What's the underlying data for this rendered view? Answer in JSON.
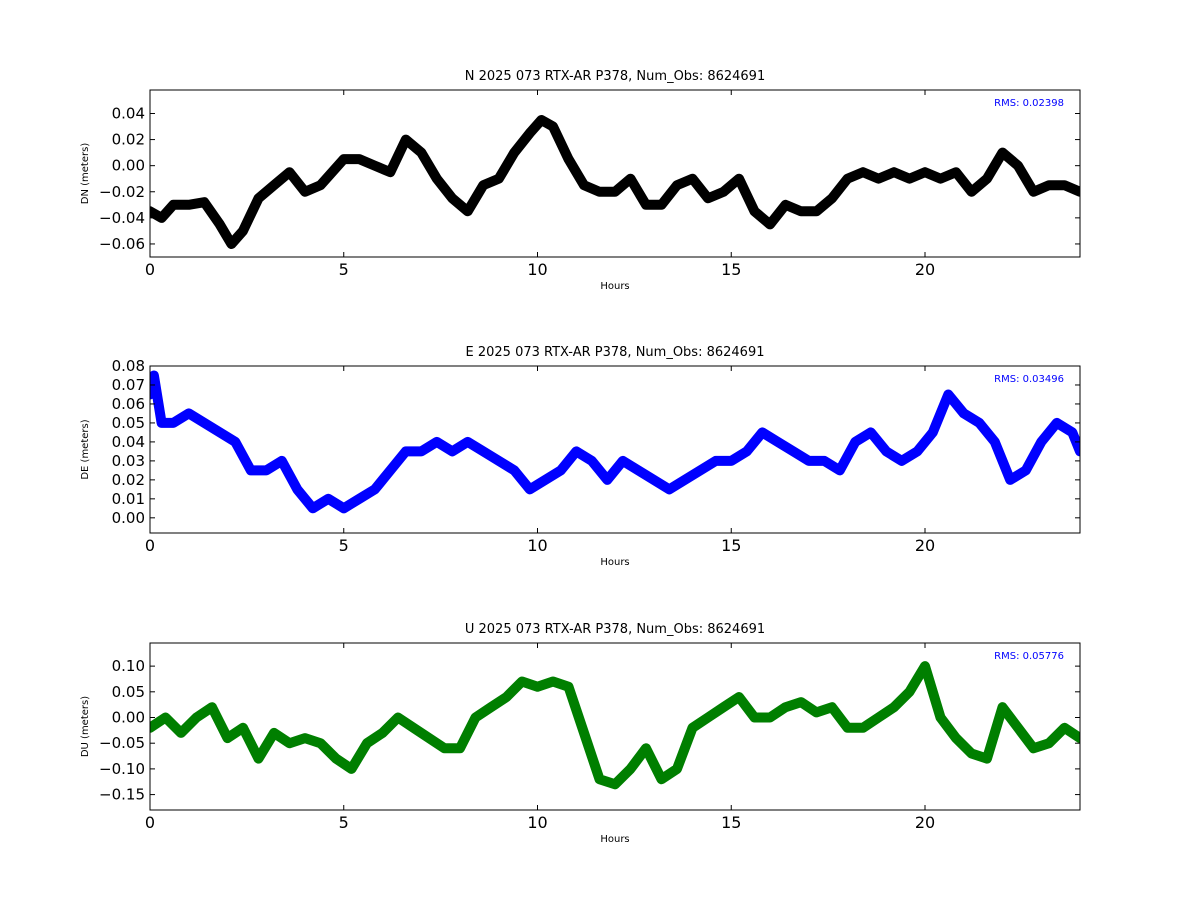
{
  "colors": {
    "n": "#000000",
    "e": "#0000ff",
    "u": "#007f00",
    "rms": "#0000ff"
  },
  "chart_data": [
    {
      "type": "line",
      "title": "N 2025 073 RTX-AR  P378, Num_Obs: 8624691",
      "xlabel": "Hours",
      "ylabel": "DN (meters)",
      "xlim": [
        0,
        24
      ],
      "ylim": [
        -0.07,
        0.058
      ],
      "x_ticks": [
        0,
        5,
        10,
        15,
        20
      ],
      "y_ticks": [
        -0.06,
        -0.04,
        -0.02,
        0.0,
        0.02,
        0.04
      ],
      "y_tick_labels": [
        "−0.06",
        "−0.04",
        "−0.02",
        "0.00",
        "0.02",
        "0.04"
      ],
      "annotation": "RMS:  0.02398",
      "series": [
        {
          "color": "#000000",
          "x": [
            0,
            0.3,
            0.6,
            1.0,
            1.4,
            1.8,
            2.1,
            2.4,
            2.8,
            3.2,
            3.6,
            4.0,
            4.4,
            4.7,
            5.0,
            5.4,
            5.8,
            6.2,
            6.6,
            7.0,
            7.4,
            7.8,
            8.2,
            8.6,
            9.0,
            9.4,
            9.8,
            10.1,
            10.4,
            10.8,
            11.2,
            11.6,
            12.0,
            12.4,
            12.8,
            13.2,
            13.6,
            14.0,
            14.4,
            14.8,
            15.2,
            15.6,
            16.0,
            16.4,
            16.8,
            17.2,
            17.6,
            18.0,
            18.4,
            18.8,
            19.2,
            19.6,
            20.0,
            20.4,
            20.8,
            21.2,
            21.6,
            22.0,
            22.4,
            22.8,
            23.2,
            23.6,
            24.0
          ],
          "y": [
            -0.035,
            -0.04,
            -0.03,
            -0.03,
            -0.028,
            -0.045,
            -0.06,
            -0.05,
            -0.025,
            -0.015,
            -0.005,
            -0.02,
            -0.015,
            -0.005,
            0.005,
            0.005,
            0.0,
            -0.005,
            0.02,
            0.01,
            -0.01,
            -0.025,
            -0.035,
            -0.015,
            -0.01,
            0.01,
            0.025,
            0.035,
            0.03,
            0.005,
            -0.015,
            -0.02,
            -0.02,
            -0.01,
            -0.03,
            -0.03,
            -0.015,
            -0.01,
            -0.025,
            -0.02,
            -0.01,
            -0.035,
            -0.045,
            -0.03,
            -0.035,
            -0.035,
            -0.025,
            -0.01,
            -0.005,
            -0.01,
            -0.005,
            -0.01,
            -0.005,
            -0.01,
            -0.005,
            -0.02,
            -0.01,
            0.01,
            0.0,
            -0.02,
            -0.015,
            -0.015,
            -0.02
          ]
        }
      ]
    },
    {
      "type": "line",
      "title": "E 2025 073 RTX-AR  P378, Num_Obs: 8624691",
      "xlabel": "Hours",
      "ylabel": "DE (meters)",
      "xlim": [
        0,
        24
      ],
      "ylim": [
        -0.008,
        0.08
      ],
      "x_ticks": [
        0,
        5,
        10,
        15,
        20
      ],
      "y_ticks": [
        0.0,
        0.01,
        0.02,
        0.03,
        0.04,
        0.05,
        0.06,
        0.07,
        0.08
      ],
      "y_tick_labels": [
        "0.00",
        "0.01",
        "0.02",
        "0.03",
        "0.04",
        "0.05",
        "0.06",
        "0.07",
        "0.08"
      ],
      "annotation": "RMS:  0.03496",
      "series": [
        {
          "color": "#0000ff",
          "x": [
            0,
            0.1,
            0.3,
            0.6,
            1.0,
            1.4,
            1.8,
            2.2,
            2.6,
            3.0,
            3.4,
            3.8,
            4.2,
            4.6,
            5.0,
            5.4,
            5.8,
            6.2,
            6.6,
            7.0,
            7.4,
            7.8,
            8.2,
            8.6,
            9.0,
            9.4,
            9.8,
            10.2,
            10.6,
            11.0,
            11.4,
            11.8,
            12.2,
            12.6,
            13.0,
            13.4,
            13.8,
            14.2,
            14.6,
            15.0,
            15.4,
            15.8,
            16.2,
            16.6,
            17.0,
            17.4,
            17.8,
            18.2,
            18.6,
            19.0,
            19.4,
            19.8,
            20.2,
            20.6,
            21.0,
            21.4,
            21.8,
            22.2,
            22.6,
            23.0,
            23.4,
            23.8,
            24.0
          ],
          "y": [
            0.065,
            0.075,
            0.05,
            0.05,
            0.055,
            0.05,
            0.045,
            0.04,
            0.025,
            0.025,
            0.03,
            0.015,
            0.005,
            0.01,
            0.005,
            0.01,
            0.015,
            0.025,
            0.035,
            0.035,
            0.04,
            0.035,
            0.04,
            0.035,
            0.03,
            0.025,
            0.015,
            0.02,
            0.025,
            0.035,
            0.03,
            0.02,
            0.03,
            0.025,
            0.02,
            0.015,
            0.02,
            0.025,
            0.03,
            0.03,
            0.035,
            0.045,
            0.04,
            0.035,
            0.03,
            0.03,
            0.025,
            0.04,
            0.045,
            0.035,
            0.03,
            0.035,
            0.045,
            0.065,
            0.055,
            0.05,
            0.04,
            0.02,
            0.025,
            0.04,
            0.05,
            0.045,
            0.035
          ]
        }
      ]
    },
    {
      "type": "line",
      "title": "U 2025 073 RTX-AR  P378, Num_Obs: 8624691",
      "xlabel": "Hours",
      "ylabel": "DU (meters)",
      "xlim": [
        0,
        24
      ],
      "ylim": [
        -0.18,
        0.145
      ],
      "x_ticks": [
        0,
        5,
        10,
        15,
        20
      ],
      "y_ticks": [
        -0.15,
        -0.1,
        -0.05,
        0.0,
        0.05,
        0.1
      ],
      "y_tick_labels": [
        "−0.15",
        "−0.10",
        "−0.05",
        "0.00",
        "0.05",
        "0.10"
      ],
      "annotation": "RMS:  0.05776",
      "series": [
        {
          "color": "#007f00",
          "x": [
            0,
            0.4,
            0.8,
            1.2,
            1.6,
            2.0,
            2.4,
            2.8,
            3.2,
            3.6,
            4.0,
            4.4,
            4.8,
            5.2,
            5.6,
            6.0,
            6.4,
            6.8,
            7.2,
            7.6,
            8.0,
            8.4,
            8.8,
            9.2,
            9.6,
            10.0,
            10.4,
            10.8,
            11.2,
            11.6,
            12.0,
            12.4,
            12.8,
            13.2,
            13.6,
            14.0,
            14.4,
            14.8,
            15.2,
            15.6,
            16.0,
            16.4,
            16.8,
            17.2,
            17.6,
            18.0,
            18.4,
            18.8,
            19.2,
            19.6,
            20.0,
            20.4,
            20.8,
            21.2,
            21.6,
            22.0,
            22.4,
            22.8,
            23.2,
            23.6,
            24.0
          ],
          "y": [
            -0.02,
            0.0,
            -0.03,
            0.0,
            0.02,
            -0.04,
            -0.02,
            -0.08,
            -0.03,
            -0.05,
            -0.04,
            -0.05,
            -0.08,
            -0.1,
            -0.05,
            -0.03,
            0.0,
            -0.02,
            -0.04,
            -0.06,
            -0.06,
            0.0,
            0.02,
            0.04,
            0.07,
            0.06,
            0.07,
            0.06,
            -0.03,
            -0.12,
            -0.13,
            -0.1,
            -0.06,
            -0.12,
            -0.1,
            -0.02,
            0.0,
            0.02,
            0.04,
            0.0,
            0.0,
            0.02,
            0.03,
            0.01,
            0.02,
            -0.02,
            -0.02,
            0.0,
            0.02,
            0.05,
            0.1,
            0.0,
            -0.04,
            -0.07,
            -0.08,
            0.02,
            -0.02,
            -0.06,
            -0.05,
            -0.02,
            -0.04
          ]
        }
      ]
    }
  ]
}
